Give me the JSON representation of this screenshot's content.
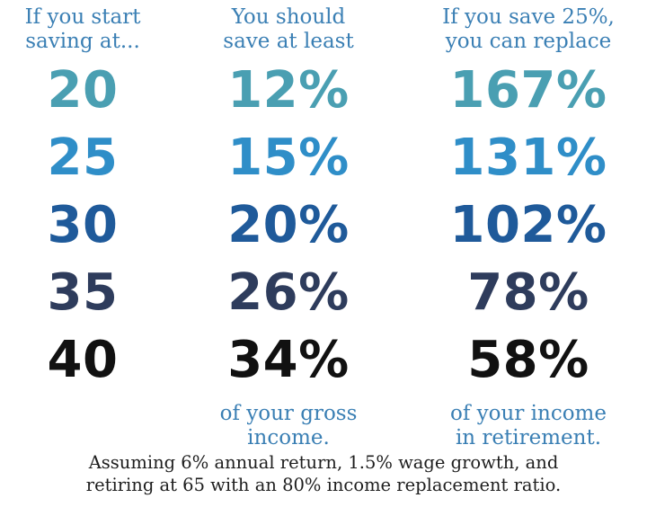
{
  "colors": {
    "header_text": "#3a7fb4",
    "note_text": "#1e1e1e",
    "row_colors": [
      "#4a9fb2",
      "#2f8ec8",
      "#1f5a9a",
      "#2e3c5c",
      "#111111"
    ]
  },
  "columns": {
    "age": {
      "header": [
        "If you start",
        "saving at..."
      ],
      "values": [
        "20",
        "25",
        "30",
        "35",
        "40"
      ]
    },
    "min_savings": {
      "header": [
        "You should",
        "save at least"
      ],
      "values": [
        "12%",
        "15%",
        "20%",
        "26%",
        "34%"
      ],
      "footer": [
        "of your gross",
        "income."
      ]
    },
    "replacement": {
      "header": [
        "If you save 25%,",
        "you can replace"
      ],
      "values": [
        "167%",
        "131%",
        "102%",
        "78%",
        "58%"
      ],
      "footer": [
        "of your income",
        "in retirement."
      ]
    }
  },
  "assumptions": [
    "Assuming 6% annual return, 1.5% wage growth, and",
    "retiring at 65 with an 80% income replacement ratio."
  ]
}
